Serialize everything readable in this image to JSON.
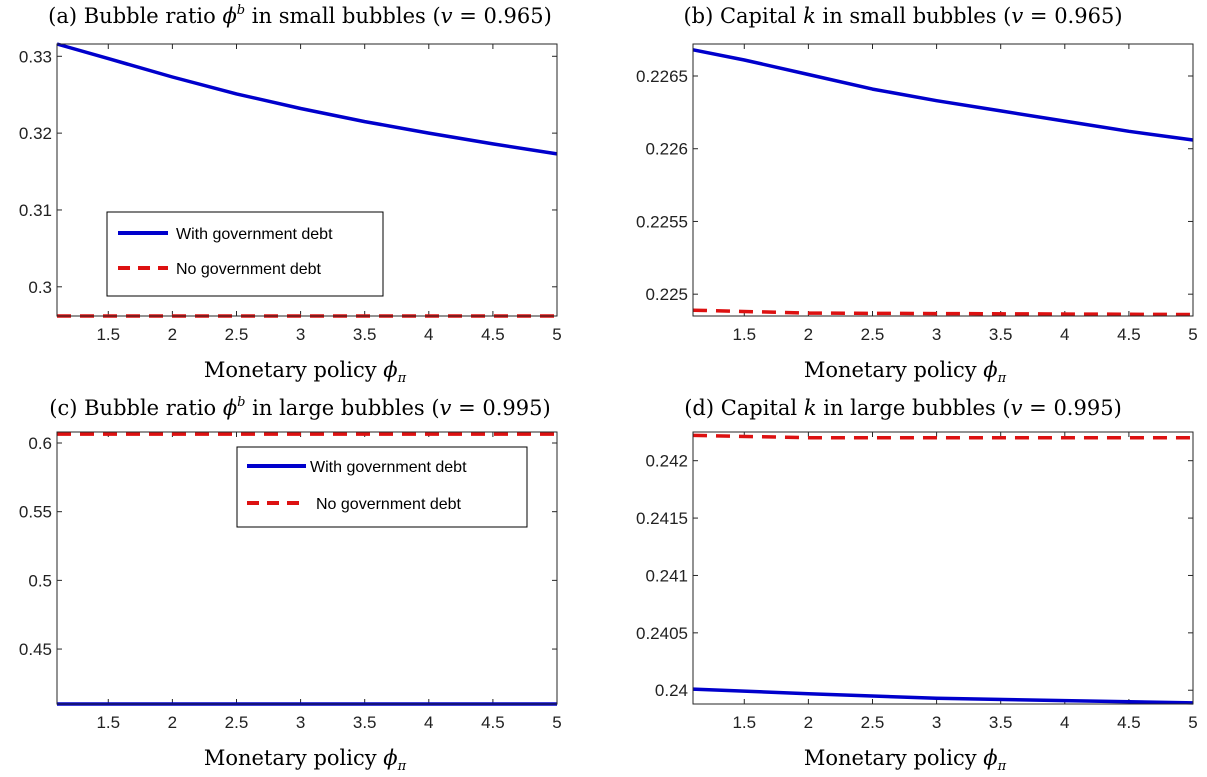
{
  "chart_data": [
    {
      "type": "line",
      "title": "(a) Bubble ratio ϕ^b in small bubbles (v = 0.965)",
      "xlabel": "Monetary policy ϕ_π",
      "ylabel": "",
      "xlim": [
        1.1,
        5
      ],
      "ylim": [
        0.2962,
        0.3316
      ],
      "xticks": [
        1.5,
        2,
        2.5,
        3,
        3.5,
        4,
        4.5,
        5
      ],
      "xtick_labels": [
        "1.5",
        "2",
        "2.5",
        "3",
        "3.5",
        "4",
        "4.5",
        "5"
      ],
      "yticks": [
        0.3,
        0.31,
        0.32,
        0.33
      ],
      "ytick_labels": [
        "0.3",
        "0.31",
        "0.32",
        "0.33"
      ],
      "legend": {
        "placement": "lower-left",
        "entries": [
          "With government debt",
          "No government debt"
        ]
      },
      "series": [
        {
          "name": "With government debt",
          "color": "#0000CC",
          "dash": "solid",
          "x": [
            1.1,
            1.5,
            2,
            2.5,
            3,
            3.5,
            4,
            4.5,
            5
          ],
          "y": [
            0.3316,
            0.3297,
            0.3273,
            0.3251,
            0.3232,
            0.3215,
            0.32,
            0.3186,
            0.3173
          ]
        },
        {
          "name": "No government debt",
          "color": "#DD1111",
          "dash": "dashed",
          "x": [
            1.1,
            5
          ],
          "y": [
            0.2962,
            0.2962
          ]
        }
      ]
    },
    {
      "type": "line",
      "title": "(b) Capital k in small bubbles (v = 0.965)",
      "xlabel": "Monetary policy ϕ_π",
      "ylabel": "",
      "xlim": [
        1.1,
        5
      ],
      "ylim": [
        0.22485,
        0.22672
      ],
      "xticks": [
        1.5,
        2,
        2.5,
        3,
        3.5,
        4,
        4.5,
        5
      ],
      "xtick_labels": [
        "1.5",
        "2",
        "2.5",
        "3",
        "3.5",
        "4",
        "4.5",
        "5"
      ],
      "yticks": [
        0.225,
        0.2255,
        0.226,
        0.2265
      ],
      "ytick_labels": [
        "0.225",
        "0.2255",
        "0.226",
        "0.2265"
      ],
      "series": [
        {
          "name": "With government debt",
          "color": "#0000CC",
          "dash": "solid",
          "x": [
            1.1,
            1.5,
            2,
            2.5,
            3,
            3.5,
            4,
            4.5,
            5
          ],
          "y": [
            0.22668,
            0.22661,
            0.22651,
            0.22641,
            0.22633,
            0.22626,
            0.22619,
            0.22612,
            0.22606
          ]
        },
        {
          "name": "No government debt",
          "color": "#DD1111",
          "dash": "dashed",
          "x": [
            1.1,
            2,
            5
          ],
          "y": [
            0.22489,
            0.22487,
            0.22486
          ]
        }
      ]
    },
    {
      "type": "line",
      "title": "(c) Bubble ratio ϕ^b in large bubbles (v = 0.995)",
      "xlabel": "Monetary policy ϕ_π",
      "ylabel": "",
      "xlim": [
        1.1,
        5
      ],
      "ylim": [
        0.41,
        0.608
      ],
      "xticks": [
        1.5,
        2,
        2.5,
        3,
        3.5,
        4,
        4.5,
        5
      ],
      "xtick_labels": [
        "1.5",
        "2",
        "2.5",
        "3",
        "3.5",
        "4",
        "4.5",
        "5"
      ],
      "yticks": [
        0.45,
        0.5,
        0.55,
        0.6
      ],
      "ytick_labels": [
        "0.45",
        "0.5",
        "0.55",
        "0.6"
      ],
      "legend": {
        "placement": "top-right",
        "entries": [
          "With government debt",
          "No government debt"
        ]
      },
      "series": [
        {
          "name": "With government debt",
          "color": "#0000CC",
          "dash": "solid",
          "x": [
            1.1,
            5
          ],
          "y": [
            0.41,
            0.41
          ]
        },
        {
          "name": "No government debt",
          "color": "#DD1111",
          "dash": "dashed",
          "x": [
            1.1,
            5
          ],
          "y": [
            0.6065,
            0.6065
          ]
        }
      ]
    },
    {
      "type": "line",
      "title": "(d) Capital k in large bubbles (v = 0.995)",
      "xlabel": "Monetary policy ϕ_π",
      "ylabel": "",
      "xlim": [
        1.1,
        5
      ],
      "ylim": [
        0.23988,
        0.24225
      ],
      "xticks": [
        1.5,
        2,
        2.5,
        3,
        3.5,
        4,
        4.5,
        5
      ],
      "xtick_labels": [
        "1.5",
        "2",
        "2.5",
        "3",
        "3.5",
        "4",
        "4.5",
        "5"
      ],
      "yticks": [
        0.24,
        0.2405,
        0.241,
        0.2415,
        0.242
      ],
      "ytick_labels": [
        "0.24",
        "0.2405",
        "0.241",
        "0.2415",
        "0.242"
      ],
      "series": [
        {
          "name": "With government debt",
          "color": "#0000CC",
          "dash": "solid",
          "x": [
            1.1,
            2,
            3,
            4,
            5
          ],
          "y": [
            0.24001,
            0.23997,
            0.23993,
            0.23991,
            0.23989
          ]
        },
        {
          "name": "No government debt",
          "color": "#DD1111",
          "dash": "dashed",
          "x": [
            1.1,
            2,
            5
          ],
          "y": [
            0.24222,
            0.2422,
            0.2422
          ]
        }
      ]
    }
  ]
}
